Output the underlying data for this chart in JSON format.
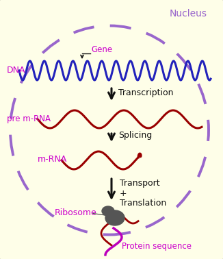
{
  "bg_color": "#FEFEE8",
  "border_color": "#888888",
  "nucleus_color": "#9966CC",
  "dna_color": "#2222BB",
  "mrna_color": "#990000",
  "label_color": "#CC00CC",
  "arrow_color": "#111111",
  "text_color": "#111111",
  "ribosome_color": "#555555",
  "protein_color": "#BB00BB",
  "nucleus_label": "Nucleus",
  "dna_label": "DNA",
  "gene_label": "Gene",
  "transcription_label": "Transcription",
  "pre_mrna_label": "pre m-RNA",
  "splicing_label": "Splicing",
  "mrna_label": "m-RNA",
  "transport_line1": "Transport",
  "transport_line2": "+",
  "transport_line3": "Translation",
  "ribosome_label": "Ribosome",
  "protein_label": "Protein sequence",
  "figw": 3.26,
  "figh": 3.78,
  "dpi": 100
}
